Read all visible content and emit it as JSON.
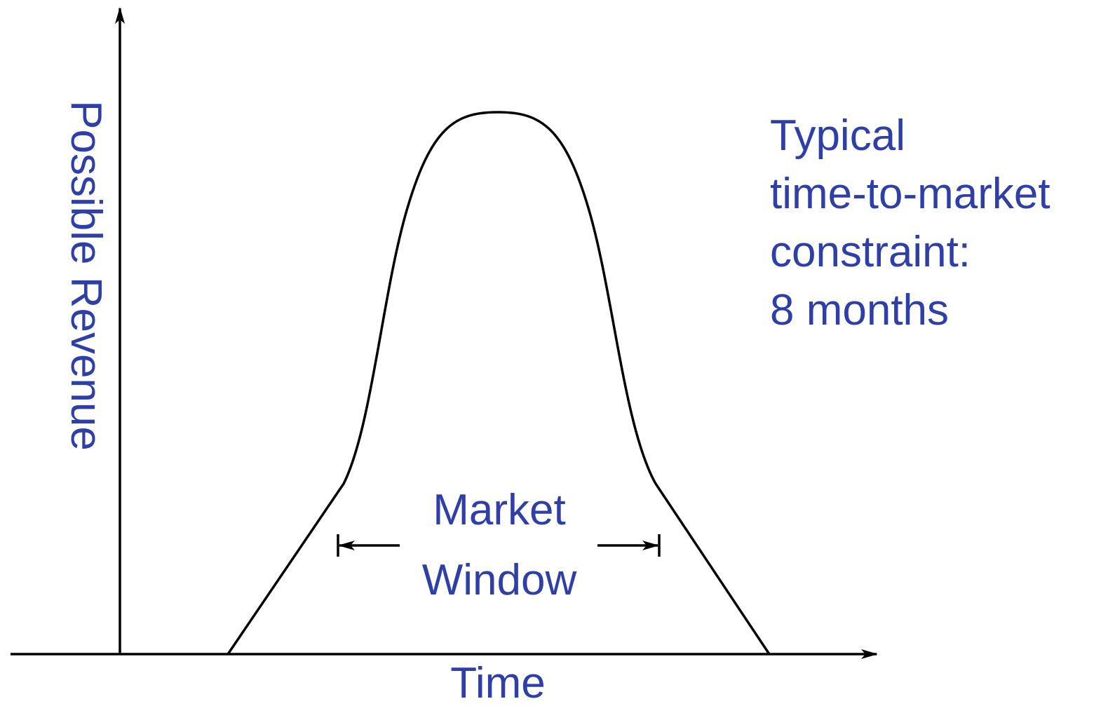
{
  "y_axis_label": "Possible Revenue",
  "x_axis_label": "Time",
  "window_label": {
    "lines": [
      "Market",
      "Window"
    ]
  },
  "note": {
    "lines": [
      "Typical",
      "time-to-market",
      "constraint:",
      "8 months"
    ]
  }
}
